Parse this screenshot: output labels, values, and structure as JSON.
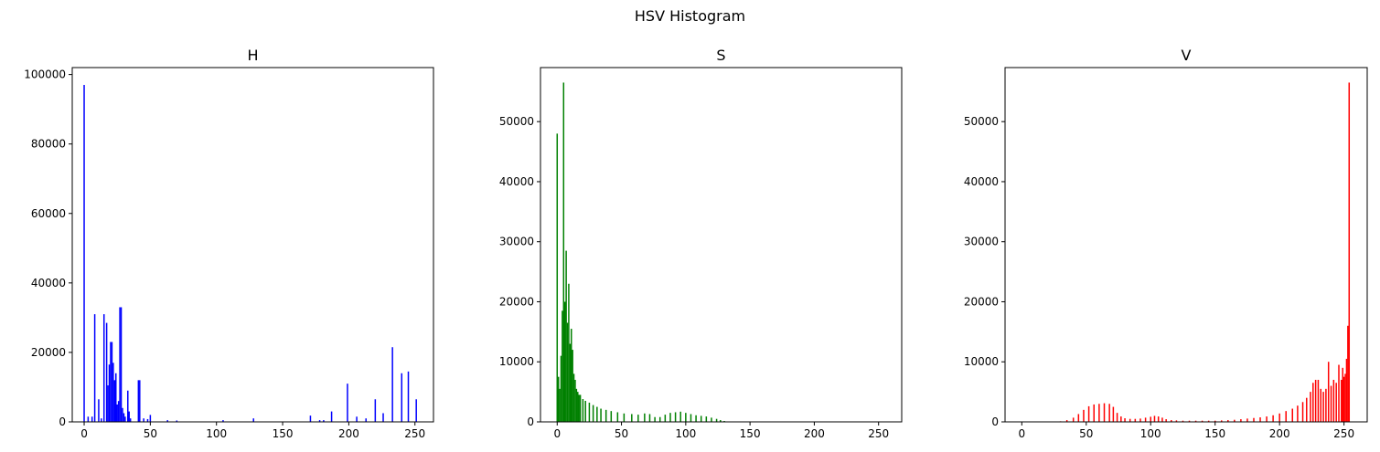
{
  "figure": {
    "title": "HSV Histogram"
  },
  "chart_data": [
    {
      "type": "bar",
      "title": "H",
      "color": "#0000ff",
      "xlim": [
        -9,
        264
      ],
      "ylim": [
        0,
        102000
      ],
      "xticks": [
        0,
        50,
        100,
        150,
        200,
        250
      ],
      "yticks": [
        0,
        20000,
        40000,
        60000,
        80000,
        100000
      ],
      "bins": [
        [
          0,
          97000
        ],
        [
          3,
          1500
        ],
        [
          6,
          1500
        ],
        [
          8,
          31000
        ],
        [
          11,
          6500
        ],
        [
          13,
          1000
        ],
        [
          15,
          31000
        ],
        [
          17,
          28500
        ],
        [
          18,
          10500
        ],
        [
          19,
          16500
        ],
        [
          20,
          23000
        ],
        [
          21,
          23000
        ],
        [
          22,
          17000
        ],
        [
          23,
          12000
        ],
        [
          24,
          14000
        ],
        [
          25,
          5000
        ],
        [
          26,
          6000
        ],
        [
          27,
          33000
        ],
        [
          28,
          33000
        ],
        [
          29,
          4000
        ],
        [
          30,
          2500
        ],
        [
          31,
          1500
        ],
        [
          33,
          9000
        ],
        [
          34,
          3000
        ],
        [
          35,
          1000
        ],
        [
          41,
          12000
        ],
        [
          42,
          12000
        ],
        [
          45,
          1000
        ],
        [
          48,
          800
        ],
        [
          50,
          2000
        ],
        [
          63,
          500
        ],
        [
          70,
          400
        ],
        [
          105,
          500
        ],
        [
          128,
          1000
        ],
        [
          171,
          1800
        ],
        [
          178,
          500
        ],
        [
          181,
          500
        ],
        [
          187,
          3000
        ],
        [
          199,
          11000
        ],
        [
          206,
          1500
        ],
        [
          213,
          1000
        ],
        [
          220,
          6500
        ],
        [
          226,
          2500
        ],
        [
          233,
          21500
        ],
        [
          240,
          14000
        ],
        [
          245,
          14500
        ],
        [
          251,
          6500
        ]
      ]
    },
    {
      "type": "bar",
      "title": "S",
      "color": "#008000",
      "xlim": [
        -13,
        268
      ],
      "ylim": [
        0,
        59000
      ],
      "xticks": [
        0,
        50,
        100,
        150,
        200,
        250
      ],
      "yticks": [
        0,
        10000,
        20000,
        30000,
        40000,
        50000
      ],
      "bins": [
        [
          0,
          48000
        ],
        [
          1,
          7500
        ],
        [
          2,
          5500
        ],
        [
          3,
          11000
        ],
        [
          4,
          18500
        ],
        [
          5,
          56500
        ],
        [
          6,
          20000
        ],
        [
          7,
          28500
        ],
        [
          8,
          16500
        ],
        [
          9,
          23000
        ],
        [
          10,
          13000
        ],
        [
          11,
          15500
        ],
        [
          12,
          12000
        ],
        [
          13,
          8000
        ],
        [
          14,
          7000
        ],
        [
          15,
          5500
        ],
        [
          16,
          5000
        ],
        [
          17,
          4500
        ],
        [
          18,
          4500
        ],
        [
          20,
          3800
        ],
        [
          22,
          3500
        ],
        [
          25,
          3200
        ],
        [
          28,
          2800
        ],
        [
          31,
          2500
        ],
        [
          34,
          2200
        ],
        [
          38,
          2000
        ],
        [
          42,
          1800
        ],
        [
          47,
          1600
        ],
        [
          52,
          1400
        ],
        [
          58,
          1300
        ],
        [
          63,
          1200
        ],
        [
          68,
          1400
        ],
        [
          72,
          1300
        ],
        [
          76,
          800
        ],
        [
          80,
          800
        ],
        [
          84,
          1200
        ],
        [
          88,
          1500
        ],
        [
          92,
          1600
        ],
        [
          96,
          1700
        ],
        [
          100,
          1500
        ],
        [
          104,
          1300
        ],
        [
          108,
          1100
        ],
        [
          112,
          1000
        ],
        [
          116,
          900
        ],
        [
          120,
          700
        ],
        [
          124,
          500
        ],
        [
          127,
          300
        ],
        [
          130,
          150
        ],
        [
          140,
          50
        ],
        [
          160,
          20
        ],
        [
          200,
          10
        ],
        [
          250,
          10
        ]
      ]
    },
    {
      "type": "bar",
      "title": "V",
      "color": "#ff0000",
      "xlim": [
        -13,
        268
      ],
      "ylim": [
        0,
        59000
      ],
      "xticks": [
        0,
        50,
        100,
        150,
        200,
        250
      ],
      "yticks": [
        0,
        10000,
        20000,
        30000,
        40000,
        50000
      ],
      "bins": [
        [
          30,
          100
        ],
        [
          35,
          300
        ],
        [
          40,
          700
        ],
        [
          44,
          1300
        ],
        [
          48,
          2000
        ],
        [
          52,
          2600
        ],
        [
          56,
          2900
        ],
        [
          60,
          3000
        ],
        [
          64,
          3100
        ],
        [
          68,
          3000
        ],
        [
          71,
          2500
        ],
        [
          74,
          1500
        ],
        [
          77,
          900
        ],
        [
          80,
          600
        ],
        [
          84,
          500
        ],
        [
          88,
          500
        ],
        [
          92,
          550
        ],
        [
          96,
          700
        ],
        [
          100,
          850
        ],
        [
          103,
          1000
        ],
        [
          106,
          900
        ],
        [
          109,
          700
        ],
        [
          112,
          450
        ],
        [
          116,
          300
        ],
        [
          120,
          250
        ],
        [
          125,
          200
        ],
        [
          130,
          200
        ],
        [
          135,
          200
        ],
        [
          140,
          200
        ],
        [
          145,
          200
        ],
        [
          150,
          200
        ],
        [
          155,
          250
        ],
        [
          160,
          300
        ],
        [
          165,
          350
        ],
        [
          170,
          450
        ],
        [
          175,
          550
        ],
        [
          180,
          650
        ],
        [
          185,
          750
        ],
        [
          190,
          900
        ],
        [
          195,
          1100
        ],
        [
          200,
          1400
        ],
        [
          205,
          1800
        ],
        [
          210,
          2200
        ],
        [
          214,
          2700
        ],
        [
          218,
          3300
        ],
        [
          221,
          4000
        ],
        [
          224,
          5000
        ],
        [
          226,
          6500
        ],
        [
          228,
          7000
        ],
        [
          230,
          7000
        ],
        [
          232,
          5500
        ],
        [
          234,
          5000
        ],
        [
          236,
          5500
        ],
        [
          238,
          10000
        ],
        [
          240,
          6000
        ],
        [
          242,
          7000
        ],
        [
          244,
          6500
        ],
        [
          246,
          9500
        ],
        [
          248,
          7000
        ],
        [
          249,
          9000
        ],
        [
          250,
          7500
        ],
        [
          251,
          8000
        ],
        [
          252,
          10500
        ],
        [
          253,
          16000
        ],
        [
          254,
          56500
        ]
      ]
    }
  ]
}
